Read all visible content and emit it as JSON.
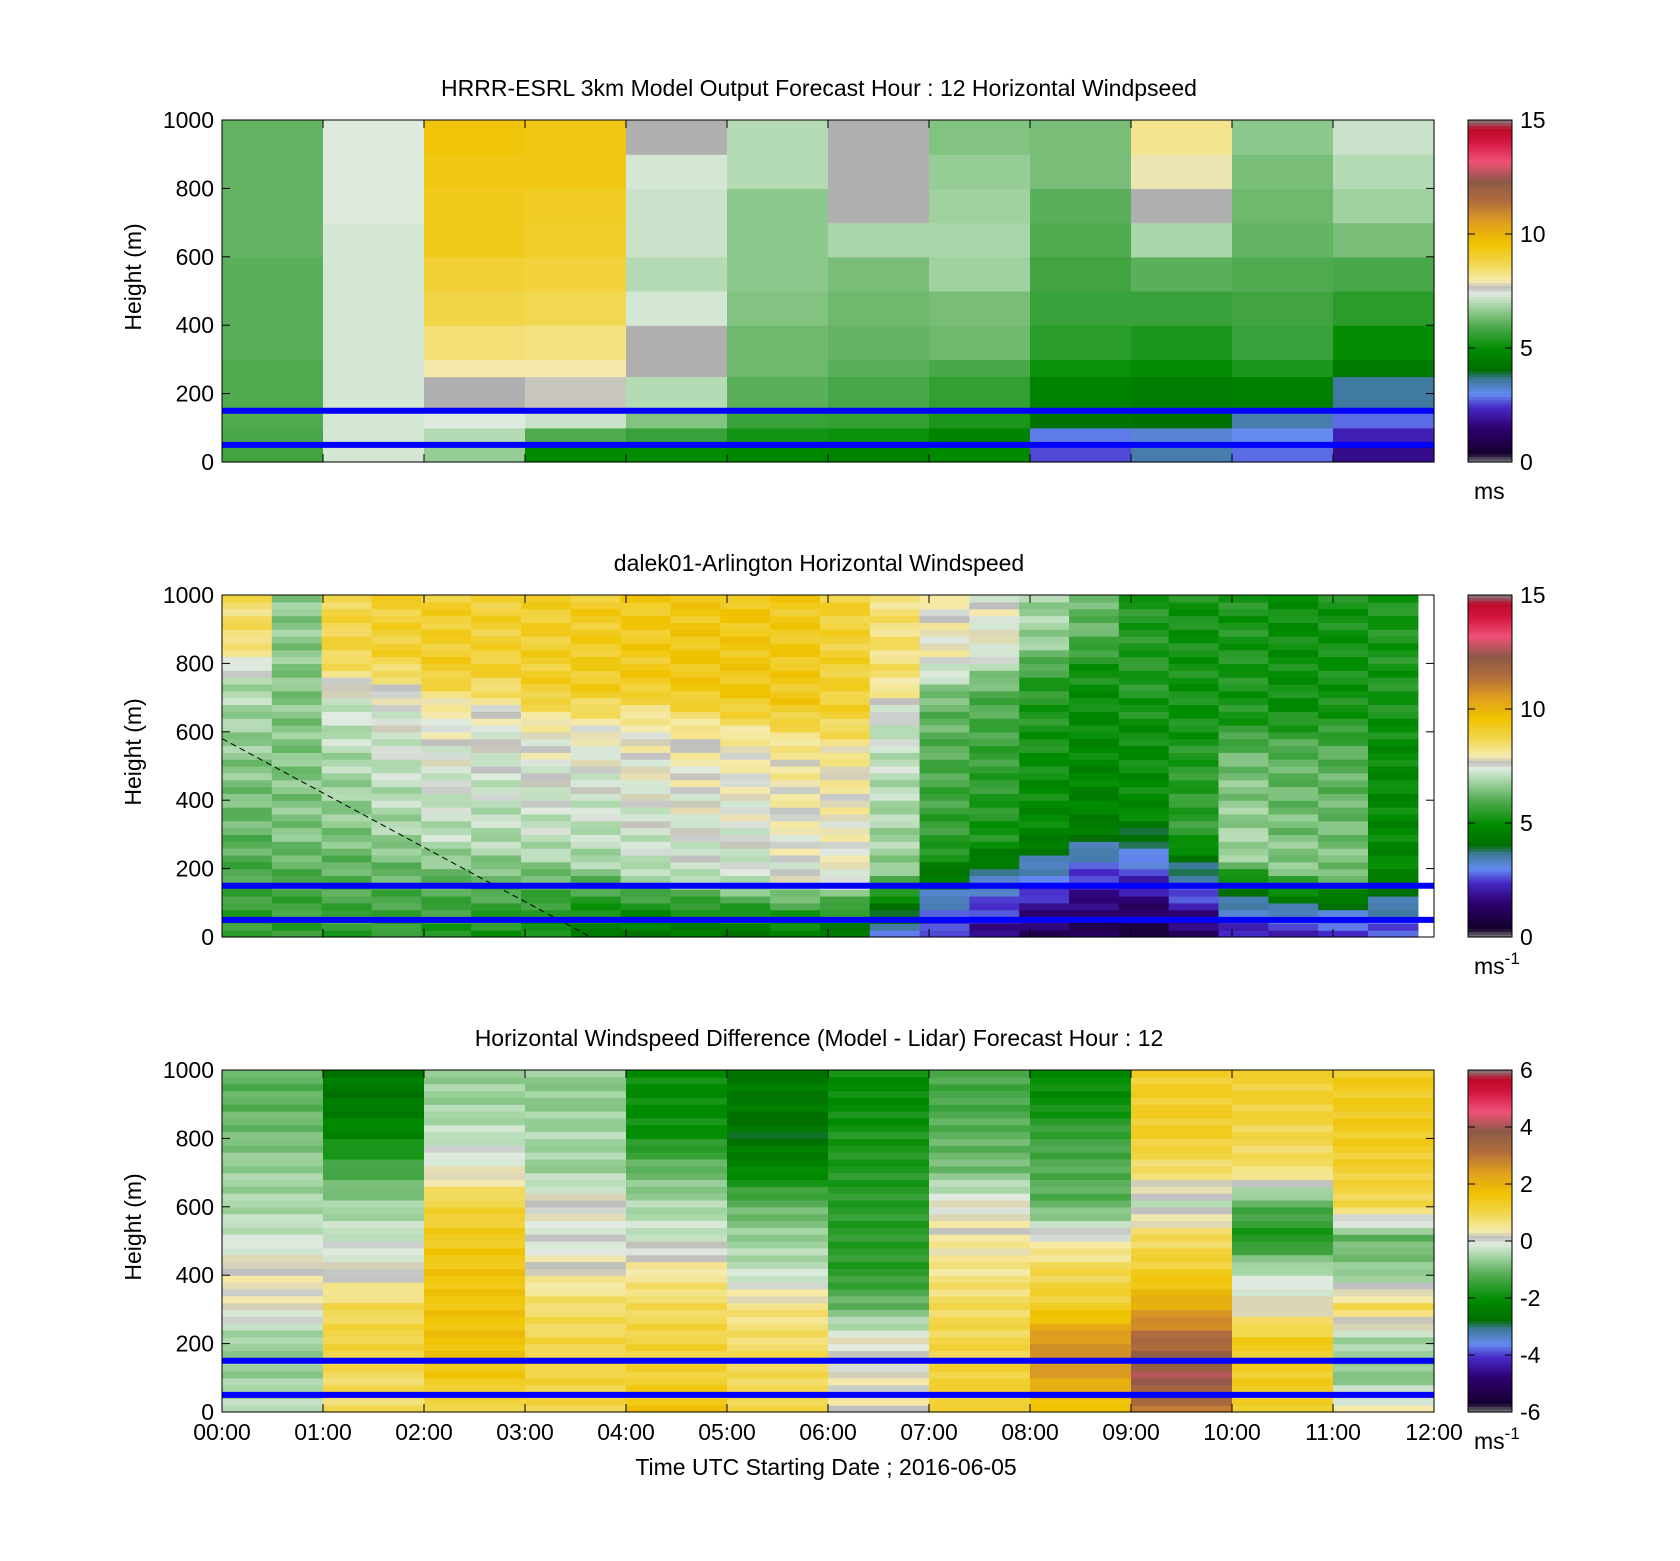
{
  "chart_data": [
    {
      "type": "heatmap",
      "title": "HRRR-ESRL 3km Model Output   Forecast Hour : 12 Horizontal Windpseed",
      "ylabel": "Height (m)",
      "ylim": [
        0,
        1000
      ],
      "yticks": [
        "0",
        "200",
        "400",
        "600",
        "800",
        "1000"
      ],
      "xlim": [
        "00:00",
        "12:00"
      ],
      "colorbar": {
        "min": 0,
        "max": 15,
        "ticks": [
          "0",
          "5",
          "10",
          "15"
        ],
        "unit": "ms",
        "superscript": ""
      },
      "reference_lines_m": [
        50,
        150
      ],
      "reference_line_color": "#0000ff",
      "columns": [
        [
          5.8,
          5.9,
          6.0,
          6.0,
          6.0,
          6.1,
          6.1,
          6.1,
          6.2,
          6.2,
          6.2,
          6.2
        ],
        [
          7.3,
          7.3,
          7.3,
          7.3,
          7.3,
          7.3,
          7.3,
          7.3,
          7.3,
          7.4,
          7.4,
          7.4
        ],
        [
          6.7,
          7.0,
          7.4,
          "gap",
          8.0,
          8.4,
          8.8,
          9.0,
          9.3,
          9.3,
          9.4,
          9.5
        ],
        [
          4.9,
          6.0,
          7.2,
          7.7,
          8.0,
          8.3,
          8.7,
          8.9,
          9.1,
          9.2,
          9.4,
          9.4
        ],
        [
          5.0,
          5.7,
          6.5,
          7.0,
          "gap",
          "gap",
          7.3,
          7.0,
          7.2,
          7.2,
          7.3,
          "gap"
        ],
        [
          4.8,
          5.2,
          5.7,
          6.1,
          6.3,
          6.3,
          6.5,
          6.6,
          6.6,
          6.6,
          7.0,
          7.0
        ],
        [
          4.7,
          5.1,
          5.6,
          5.9,
          6.1,
          6.2,
          6.3,
          6.4,
          6.9,
          "gap",
          "gap",
          "gap"
        ],
        [
          4.9,
          4.7,
          5.3,
          5.6,
          5.9,
          6.3,
          6.4,
          6.8,
          6.9,
          6.8,
          6.7,
          6.5
        ],
        [
          2.6,
          2.9,
          4.2,
          4.7,
          5.1,
          5.5,
          5.7,
          5.8,
          6.0,
          6.1,
          6.4,
          6.4
        ],
        [
          3.5,
          3.2,
          4.1,
          4.5,
          5.0,
          5.3,
          5.7,
          6.1,
          6.9,
          "gap",
          7.9,
          8.2
        ],
        [
          2.8,
          3.0,
          3.5,
          4.6,
          5.3,
          5.7,
          5.8,
          6.0,
          6.2,
          6.3,
          6.4,
          6.6
        ],
        [
          1.8,
          2.2,
          2.8,
          3.6,
          4.4,
          5.0,
          5.5,
          5.9,
          6.4,
          6.8,
          7.0,
          7.2
        ]
      ]
    },
    {
      "type": "heatmap",
      "title": "dalek01-Arlington  Horizontal Windspeed",
      "ylabel": "Height (m)",
      "ylim": [
        0,
        1000
      ],
      "yticks": [
        "0",
        "200",
        "400",
        "600",
        "800",
        "1000"
      ],
      "xlim": [
        "00:00",
        "12:00"
      ],
      "colorbar": {
        "min": 0,
        "max": 15,
        "ticks": [
          "0",
          "5",
          "10",
          "15"
        ],
        "unit": "ms",
        "superscript": "-1"
      },
      "reference_lines_m": [
        50,
        150
      ],
      "reference_line_color": "#0000ff",
      "annotations": [
        "dashed line from 0 m-580 m height at 00:00 to 0 m at about 03:40"
      ],
      "profiles": [
        {
          "t": 0.0,
          "low": 5.5,
          "mid": 6.2,
          "top": 8.5,
          "bh": 300,
          "mh": 750
        },
        {
          "t": 0.5,
          "low": 5.5,
          "mid": 6.5,
          "top": 6.6,
          "bh": 300,
          "mh": 750
        },
        {
          "t": 1.0,
          "low": 5.6,
          "mid": 6.5,
          "top": 8.8,
          "bh": 300,
          "mh": 700
        },
        {
          "t": 1.5,
          "low": 5.5,
          "mid": 6.8,
          "top": 9.0,
          "bh": 300,
          "mh": 700
        },
        {
          "t": 2.0,
          "low": 5.4,
          "mid": 7.0,
          "top": 9.1,
          "bh": 280,
          "mh": 650
        },
        {
          "t": 2.5,
          "low": 5.3,
          "mid": 6.9,
          "top": 9.0,
          "bh": 260,
          "mh": 650
        },
        {
          "t": 3.0,
          "low": 5.0,
          "mid": 7.0,
          "top": 9.1,
          "bh": 250,
          "mh": 600
        },
        {
          "t": 3.5,
          "low": 4.6,
          "mid": 6.9,
          "top": 9.2,
          "bh": 220,
          "mh": 600
        },
        {
          "t": 4.0,
          "low": 4.3,
          "mid": 7.1,
          "top": 9.3,
          "bh": 200,
          "mh": 620
        },
        {
          "t": 4.5,
          "low": 4.2,
          "mid": 7.2,
          "top": 9.4,
          "bh": 180,
          "mh": 600
        },
        {
          "t": 5.0,
          "low": 4.4,
          "mid": 7.2,
          "top": 9.4,
          "bh": 170,
          "mh": 580
        },
        {
          "t": 5.5,
          "low": 4.5,
          "mid": 7.5,
          "top": 9.3,
          "bh": 170,
          "mh": 560
        },
        {
          "t": 6.0,
          "low": 4.2,
          "mid": 7.6,
          "top": 9.0,
          "bh": 170,
          "mh": 540
        },
        {
          "t": 6.5,
          "low": 3.2,
          "mid": 6.7,
          "top": 8.4,
          "bh": 200,
          "mh": 640
        },
        {
          "t": 7.0,
          "low": 2.3,
          "mid": 5.5,
          "top": 7.8,
          "bh": 260,
          "mh": 700
        },
        {
          "t": 7.5,
          "low": 1.8,
          "mid": 5.2,
          "top": 7.6,
          "bh": 280,
          "mh": 720
        },
        {
          "t": 8.0,
          "low": 1.2,
          "mid": 4.8,
          "top": 6.8,
          "bh": 300,
          "mh": 750
        },
        {
          "t": 8.5,
          "low": 0.8,
          "mid": 4.6,
          "top": 6.2,
          "bh": 330,
          "mh": 780
        },
        {
          "t": 9.0,
          "low": 0.8,
          "mid": 4.9,
          "top": 5.4,
          "bh": 360,
          "mh": 600
        },
        {
          "t": 9.5,
          "low": 1.2,
          "mid": 5.6,
          "top": 5.2,
          "bh": 300,
          "mh": 500
        },
        {
          "t": 10.0,
          "low": 2.0,
          "mid": 6.9,
          "top": 5.3,
          "bh": 240,
          "mh": 520
        },
        {
          "t": 10.5,
          "low": 2.3,
          "mid": 6.6,
          "top": 5.1,
          "bh": 200,
          "mh": 540
        },
        {
          "t": 11.0,
          "low": 2.2,
          "mid": 6.5,
          "top": 5.2,
          "bh": 190,
          "mh": 540
        },
        {
          "t": 11.5,
          "low": 2.6,
          "mid": 4.8,
          "top": 5.3,
          "bh": 180,
          "mh": 560
        }
      ]
    },
    {
      "type": "heatmap",
      "title": "Horizontal Windspeed Difference (Model - Lidar) Forecast Hour : 12",
      "ylabel": "Height (m)",
      "ylim": [
        0,
        1000
      ],
      "yticks": [
        "0",
        "200",
        "400",
        "600",
        "800",
        "1000"
      ],
      "xlabel": "Time UTC  Starting Date ; 2016-06-05",
      "xticks": [
        "00:00",
        "01:00",
        "02:00",
        "03:00",
        "04:00",
        "05:00",
        "06:00",
        "07:00",
        "08:00",
        "09:00",
        "10:00",
        "11:00",
        "12:00"
      ],
      "colorbar": {
        "min": -6,
        "max": 6,
        "ticks": [
          "-6",
          "-4",
          "-2",
          "0",
          "2",
          "4",
          "6"
        ],
        "unit": "ms",
        "superscript": "-1"
      },
      "reference_lines_m": [
        50,
        150
      ],
      "reference_line_color": "#0000ff",
      "columns": [
        [
          -0.4,
          -0.6,
          -0.6,
          0.2,
          0.3,
          -0.2,
          -0.5,
          -0.6,
          -0.9,
          -1.1
        ],
        [
          0.8,
          0.9,
          1.1,
          0.9,
          0.1,
          -0.2,
          -0.6,
          -1.3,
          -2.1,
          -2.5
        ],
        [
          1.1,
          1.5,
          1.7,
          1.6,
          1.6,
          1.4,
          1.1,
          0.1,
          -0.3,
          -0.6
        ],
        [
          1.0,
          1.1,
          1.0,
          0.8,
          0.3,
          -0.1,
          0.2,
          -0.6,
          -0.5,
          -0.7
        ],
        [
          1.6,
          1.2,
          1.1,
          0.9,
          0.5,
          -0.2,
          -0.5,
          -1.0,
          -1.9,
          -2.0
        ],
        [
          1.1,
          0.9,
          0.8,
          0.6,
          -0.3,
          -0.6,
          -1.1,
          -2.2,
          -2.7,
          -2.5
        ],
        [
          0.3,
          0.2,
          0.1,
          -1.0,
          -1.6,
          -1.6,
          -1.6,
          -1.7,
          -1.8,
          -2.0
        ],
        [
          1.1,
          1.2,
          1.0,
          0.9,
          0.6,
          0.4,
          0.1,
          -0.9,
          -1.1,
          -1.3
        ],
        [
          1.6,
          2.4,
          2.6,
          1.3,
          1.0,
          0.2,
          -1.1,
          -1.2,
          -1.4,
          -2.0
        ],
        [
          3.1,
          4.0,
          3.3,
          2.2,
          1.3,
          0.9,
          -0.2,
          0.8,
          1.3,
          1.3
        ],
        [
          1.2,
          1.4,
          1.4,
          0.2,
          -0.3,
          -1.8,
          -1.1,
          0.8,
          1.0,
          1.2
        ],
        [
          0.2,
          -0.8,
          -0.5,
          0.9,
          -0.7,
          -1.0,
          1.0,
          1.2,
          1.4,
          1.4
        ]
      ]
    }
  ]
}
